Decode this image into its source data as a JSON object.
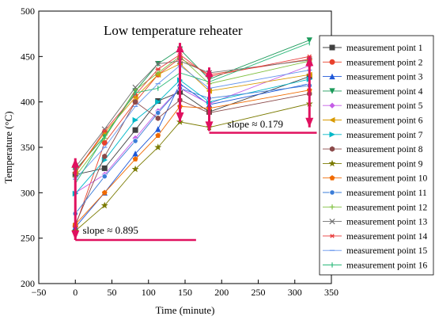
{
  "chart_data": {
    "type": "line",
    "title": "Low temperature reheater",
    "xlabel": "Time (minute)",
    "ylabel": "Temperature (°C)",
    "xlim": [
      -50,
      350
    ],
    "ylim": [
      200,
      500
    ],
    "xticks": [
      "−50",
      "0",
      "50",
      "100",
      "150",
      "200",
      "250",
      "300",
      "350"
    ],
    "yticks": [
      "200",
      "250",
      "300",
      "350",
      "400",
      "450",
      "500"
    ],
    "x": [
      0,
      40,
      82,
      113,
      143,
      183,
      320
    ],
    "legend_position": "right",
    "grid": false,
    "series": [
      {
        "name": "measurement point 1",
        "color": "#404040",
        "marker": "square",
        "values": [
          320,
          327,
          369,
          401,
          411,
          389,
          428
        ]
      },
      {
        "name": "measurement point 2",
        "color": "#e8412c",
        "marker": "circle",
        "values": [
          263,
          355,
          400,
          430,
          448,
          430,
          447
        ]
      },
      {
        "name": "measurement point 3",
        "color": "#1f58d8",
        "marker": "triangle-up",
        "values": [
          262,
          300,
          343,
          370,
          420,
          397,
          420
        ]
      },
      {
        "name": "measurement point 4",
        "color": "#1b9a5a",
        "marker": "triangle-down",
        "values": [
          325,
          362,
          412,
          442,
          458,
          425,
          468
        ]
      },
      {
        "name": "measurement point 5",
        "color": "#c45ce6",
        "marker": "diamond",
        "values": [
          300,
          320,
          360,
          390,
          415,
          398,
          440
        ]
      },
      {
        "name": "measurement point 6",
        "color": "#d99a00",
        "marker": "triangle-left",
        "values": [
          322,
          366,
          405,
          430,
          442,
          412,
          430
        ]
      },
      {
        "name": "measurement point 7",
        "color": "#00b8c8",
        "marker": "triangle-right",
        "values": [
          299,
          336,
          380,
          400,
          424,
          400,
          425
        ]
      },
      {
        "name": "measurement point 8",
        "color": "#8b4a4a",
        "marker": "hexagon",
        "values": [
          265,
          340,
          400,
          382,
          402,
          388,
          409
        ]
      },
      {
        "name": "measurement point 9",
        "color": "#7a7a00",
        "marker": "star",
        "values": [
          258,
          286,
          326,
          350,
          378,
          372,
          398
        ]
      },
      {
        "name": "measurement point 10",
        "color": "#f06a00",
        "marker": "pentagon",
        "values": [
          265,
          300,
          337,
          363,
          395,
          393,
          413
        ]
      },
      {
        "name": "measurement point 11",
        "color": "#3b7dd8",
        "marker": "circle-half",
        "values": [
          277,
          318,
          357,
          388,
          415,
          404,
          418
        ]
      },
      {
        "name": "measurement point 12",
        "color": "#80c040",
        "marker": "plus",
        "values": [
          318,
          360,
          413,
          432,
          450,
          420,
          445
        ]
      },
      {
        "name": "measurement point 13",
        "color": "#707070",
        "marker": "x",
        "values": [
          328,
          370,
          416,
          442,
          445,
          432,
          446
        ]
      },
      {
        "name": "measurement point 14",
        "color": "#e83a3a",
        "marker": "asterisk",
        "values": [
          322,
          368,
          408,
          436,
          452,
          428,
          450
        ]
      },
      {
        "name": "measurement point 15",
        "color": "#6495ed",
        "marker": "dash",
        "values": [
          315,
          350,
          395,
          420,
          440,
          415,
          435
        ]
      },
      {
        "name": "measurement point 16",
        "color": "#2bb97a",
        "marker": "bar",
        "values": [
          310,
          362,
          410,
          415,
          432,
          422,
          465
        ]
      }
    ],
    "annotations": [
      {
        "text": "slope ≈ 0.895",
        "x": 10,
        "y": 255
      },
      {
        "text": "slope ≈ 0.179",
        "x": 208,
        "y": 372
      }
    ],
    "annotation_color": "#e0115f"
  }
}
